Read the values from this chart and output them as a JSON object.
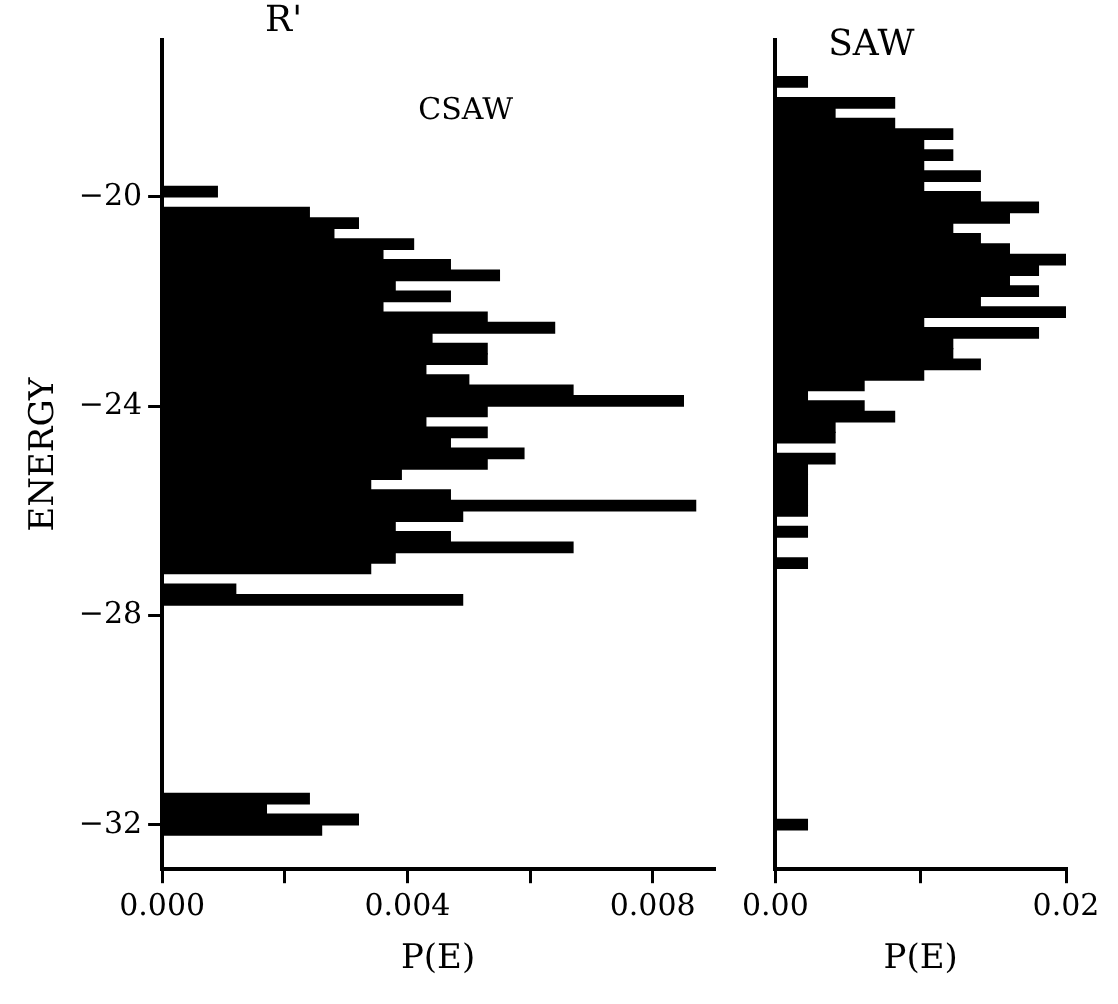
{
  "chart_data": [
    {
      "type": "histogram",
      "orientation": "horizontal",
      "title": "R'",
      "subtitle": "CSAW",
      "xlabel": "P(E)",
      "ylabel": "ENERGY",
      "color": "#000000",
      "bins": [
        -32.4,
        -32.2,
        -32.0,
        -31.8,
        -31.6,
        -31.4,
        -31.2,
        -31.0,
        -30.8,
        -30.6,
        -30.4,
        -30.2,
        -30.0,
        -29.8,
        -29.6,
        -29.4,
        -29.2,
        -29.0,
        -28.8,
        -28.6,
        -28.4,
        -28.2,
        -28.0,
        -27.8,
        -27.6,
        -27.4,
        -27.2,
        -27.0,
        -26.8,
        -26.6,
        -26.4,
        -26.2,
        -26.0,
        -25.8,
        -25.6,
        -25.4,
        -25.2,
        -25.0,
        -24.8,
        -24.6,
        -24.4,
        -24.2,
        -24.0,
        -23.8,
        -23.6,
        -23.4,
        -23.2,
        -23.0,
        -22.8,
        -22.6,
        -22.4,
        -22.2,
        -22.0,
        -21.8,
        -21.6,
        -21.4,
        -21.2,
        -21.0,
        -20.8,
        -20.6,
        -20.4,
        -20.2,
        -20.0,
        -19.8
      ],
      "values": [
        0,
        0.0026,
        0.0032,
        0.0017,
        0.0024,
        0,
        0,
        0,
        0,
        0,
        0,
        0,
        0,
        0,
        0,
        0,
        0,
        0,
        0,
        0,
        0,
        0,
        0,
        0.0049,
        0.0012,
        0,
        0.0034,
        0.0038,
        0.0067,
        0.0047,
        0.0038,
        0.0049,
        0.0087,
        0.0047,
        0.0034,
        0.0039,
        0.0053,
        0.0059,
        0.0047,
        0.0053,
        0.0043,
        0.0053,
        0.0085,
        0.0067,
        0.005,
        0.0043,
        0.0053,
        0.0053,
        0.0044,
        0.0064,
        0.0053,
        0.0036,
        0.0047,
        0.0038,
        0.0055,
        0.0047,
        0.0036,
        0.0041,
        0.0028,
        0.0032,
        0.0024,
        0,
        0.0009
      ],
      "xlim": [
        0,
        0.009
      ],
      "xticks": [
        {
          "value": 0,
          "label": "0.000"
        },
        {
          "value": 0.002,
          "label": null
        },
        {
          "value": 0.004,
          "label": "0.004"
        },
        {
          "value": 0.006,
          "label": null
        },
        {
          "value": 0.008,
          "label": "0.008"
        }
      ],
      "ylim": [
        -32.85,
        -17
      ],
      "yticks": [
        {
          "value": -32,
          "label": "−32"
        },
        {
          "value": -28,
          "label": "−28"
        },
        {
          "value": -24,
          "label": "−24"
        },
        {
          "value": -20,
          "label": "−20"
        }
      ],
      "grid": false,
      "legend": false
    },
    {
      "type": "histogram",
      "orientation": "horizontal",
      "title": "SAW",
      "xlabel": "P(E)",
      "color": "#000000",
      "bins": [
        -32.1,
        -31.9,
        -31.7,
        -31.5,
        -31.3,
        -31.1,
        -30.9,
        -30.7,
        -30.5,
        -30.3,
        -30.1,
        -29.9,
        -29.7,
        -29.5,
        -29.3,
        -29.1,
        -28.9,
        -28.7,
        -28.5,
        -28.3,
        -28.1,
        -27.9,
        -27.7,
        -27.5,
        -27.3,
        -27.1,
        -26.9,
        -26.7,
        -26.5,
        -26.3,
        -26.1,
        -25.9,
        -25.7,
        -25.5,
        -25.3,
        -25.1,
        -24.9,
        -24.7,
        -24.5,
        -24.3,
        -24.1,
        -23.9,
        -23.7,
        -23.5,
        -23.3,
        -23.1,
        -22.9,
        -22.7,
        -22.5,
        -22.3,
        -22.1,
        -21.9,
        -21.7,
        -21.5,
        -21.3,
        -21.1,
        -20.9,
        -20.7,
        -20.5,
        -20.3,
        -20.1,
        -19.9,
        -19.7,
        -19.5,
        -19.3,
        -19.1,
        -18.9,
        -18.7,
        -18.5,
        -18.3,
        -18.1,
        -17.9,
        -17.7
      ],
      "values": [
        0.0022,
        0,
        0,
        0,
        0,
        0,
        0,
        0,
        0,
        0,
        0,
        0,
        0,
        0,
        0,
        0,
        0,
        0,
        0,
        0,
        0,
        0,
        0,
        0,
        0,
        0.0022,
        0,
        0,
        0.0022,
        0,
        0.0022,
        0.0022,
        0.0022,
        0.0022,
        0.0022,
        0.0041,
        0,
        0.0041,
        0.0041,
        0.0082,
        0.0061,
        0.0022,
        0.0061,
        0.0102,
        0.0141,
        0.0122,
        0.0122,
        0.0181,
        0.0102,
        0.02,
        0.0141,
        0.0181,
        0.0161,
        0.0181,
        0.02,
        0.0161,
        0.0141,
        0.0122,
        0.0161,
        0.0181,
        0.0141,
        0.0102,
        0.0141,
        0.0102,
        0.0122,
        0.0102,
        0.0122,
        0.0082,
        0.0041,
        0.0082,
        0,
        0.0022
      ],
      "xlim": [
        0,
        0.02
      ],
      "xticks": [
        {
          "value": 0,
          "label": "0.00"
        },
        {
          "value": 0.01,
          "label": null
        },
        {
          "value": 0.02,
          "label": "0.02"
        }
      ],
      "ylim": [
        -32.85,
        -17
      ],
      "tick_labels": "x",
      "grid": false,
      "legend": false
    }
  ]
}
